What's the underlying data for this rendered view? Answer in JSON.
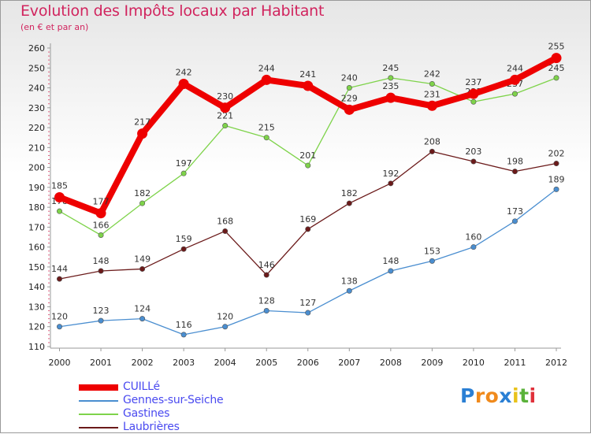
{
  "header": {
    "title": "Evolution des Impôts locaux par Habitant",
    "subtitle": "(en € et par an)"
  },
  "logo": {
    "text": "Proxiti",
    "letters": [
      "P",
      "r",
      "o",
      "x",
      "i",
      "t",
      "i"
    ],
    "letter_colors": [
      "#2a7fd4",
      "#f08a1c",
      "#f08a1c",
      "#2a7fd4",
      "#e8c21a",
      "#5ab23a",
      "#e0303a"
    ]
  },
  "chart_data": {
    "type": "line",
    "x": [
      2000,
      2001,
      2002,
      2003,
      2004,
      2005,
      2006,
      2007,
      2008,
      2009,
      2010,
      2011,
      2012
    ],
    "ylim": [
      110,
      260
    ],
    "yticks": [
      110,
      120,
      130,
      140,
      150,
      160,
      170,
      180,
      190,
      200,
      210,
      220,
      230,
      240,
      250,
      260
    ],
    "grid": false,
    "legend_position": "bottom-left",
    "series": [
      {
        "name": "Laubrières",
        "color": "#6b1a1a",
        "emphasis": false,
        "values": [
          144,
          148,
          149,
          159,
          168,
          146,
          169,
          182,
          192,
          208,
          203,
          198,
          202
        ],
        "labels": [
          "144",
          "148",
          "149",
          "159",
          "168",
          "146",
          "169",
          "182",
          "192",
          "208",
          "203",
          "198",
          "202"
        ]
      },
      {
        "name": "Gastines",
        "color": "#7ed34a",
        "emphasis": false,
        "values": [
          178,
          166,
          182,
          197,
          221,
          215,
          201,
          240,
          245,
          242,
          233,
          237,
          245
        ],
        "labels": [
          "178",
          "166",
          "182",
          "197",
          "221",
          "215",
          "201",
          "240",
          "245",
          "242",
          "233",
          "237",
          "245"
        ]
      },
      {
        "name": "Gennes-sur-Seiche",
        "color": "#4a8ed0",
        "emphasis": false,
        "values": [
          120,
          123,
          124,
          116,
          120,
          128,
          127,
          138,
          148,
          153,
          160,
          173,
          189
        ],
        "labels": [
          "120",
          "123",
          "124",
          "116",
          "120",
          "128",
          "127",
          "138",
          "148",
          "153",
          "160",
          "173",
          "189"
        ]
      },
      {
        "name": "CUILLé",
        "color": "#ee0000",
        "emphasis": true,
        "values": [
          185,
          177,
          217,
          242,
          230,
          244,
          241,
          229,
          235,
          231,
          237,
          244,
          255
        ],
        "labels": [
          "185",
          "177",
          "217",
          "242",
          "230",
          "244",
          "241",
          "229",
          "235",
          "231",
          "237",
          "244",
          "255"
        ]
      }
    ],
    "legend_order": [
      "CUILLé",
      "Gennes-sur-Seiche",
      "Gastines",
      "Laubrières"
    ]
  }
}
